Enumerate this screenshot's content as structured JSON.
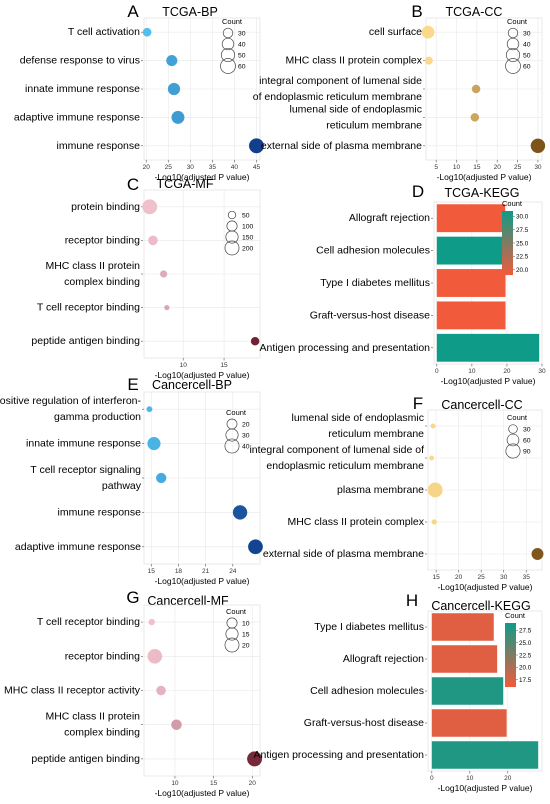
{
  "panels": [
    {
      "letter": "A",
      "title": "TCGA-BP",
      "type": "dot",
      "xlabel": "-Log10(adjusted P value)",
      "xlim": [
        19.5,
        45.8
      ],
      "xticks": [
        20,
        25,
        30,
        35,
        40,
        45
      ],
      "legend_title": "Count",
      "size_legend": [
        30,
        40,
        50,
        60
      ],
      "size_range": [
        30,
        60
      ],
      "color_values": [
        20,
        45
      ],
      "categories": [
        "T cell activation",
        "defense response to virus",
        "innate immune response",
        "adaptive immune response",
        "immune response"
      ],
      "points": [
        {
          "x": 20.2,
          "count": 25
        },
        {
          "x": 25.8,
          "count": 36
        },
        {
          "x": 26.3,
          "count": 42
        },
        {
          "x": 27.2,
          "count": 46
        },
        {
          "x": 45.0,
          "count": 58
        }
      ]
    },
    {
      "letter": "B",
      "title": "TCGA-CC",
      "type": "dot",
      "xlabel": "-Log10(adjusted P value)",
      "xlim": [
        2.5,
        31
      ],
      "xticks": [
        5,
        10,
        15,
        20,
        25,
        30
      ],
      "legend_title": "Count",
      "size_legend": [
        30,
        40,
        50,
        60
      ],
      "size_range": [
        30,
        60
      ],
      "color_values": [
        5,
        30
      ],
      "categories": [
        "cell surface",
        "MHC class II protein complex",
        "integral component of lumenal side of endoplasmic reticulum membrane",
        "lumenal side of endoplasmic reticulum membrane",
        "external side of plasma membrane"
      ],
      "category_lines": [
        [
          "cell surface"
        ],
        [
          "MHC class II protein complex"
        ],
        [
          "integral component of lumenal side",
          "of endoplasmic reticulum membrane"
        ],
        [
          "lumenal side of endoplasmic",
          "reticulum membrane"
        ],
        [
          "external side of plasma membrane"
        ]
      ],
      "points": [
        {
          "x": 3.0,
          "count": 45
        },
        {
          "x": 3.2,
          "count": 22
        },
        {
          "x": 14.8,
          "count": 24
        },
        {
          "x": 14.5,
          "count": 24
        },
        {
          "x": 30.0,
          "count": 55
        }
      ]
    },
    {
      "letter": "C",
      "title": "TCGA-MF",
      "type": "dot",
      "xlabel": "-Log10(adjusted P value)",
      "xlim": [
        5.2,
        19.4
      ],
      "xticks": [
        10,
        15
      ],
      "legend_title": "",
      "size_legend": [
        50,
        100,
        150,
        200
      ],
      "size_range": [
        10,
        230
      ],
      "color_values": [
        5,
        19
      ],
      "categories": [
        "protein binding",
        "receptor binding",
        "MHC class II protein complex binding",
        "T cell receptor binding",
        "peptide antigen binding"
      ],
      "category_lines": [
        [
          "protein binding"
        ],
        [
          "receptor binding"
        ],
        [
          "MHC class II protein",
          "complex binding"
        ],
        [
          "T cell receptor binding"
        ],
        [
          "peptide antigen binding"
        ]
      ],
      "points": [
        {
          "x": 5.9,
          "count": 220
        },
        {
          "x": 6.3,
          "count": 80
        },
        {
          "x": 7.6,
          "count": 40
        },
        {
          "x": 8.0,
          "count": 18
        },
        {
          "x": 18.8,
          "count": 60
        }
      ]
    },
    {
      "letter": "D",
      "title": "TCGA-KEGG",
      "type": "bar",
      "xlabel": "-Log10(adjusted P value)",
      "xlim": [
        -0.8,
        30
      ],
      "xticks": [
        0,
        10,
        20,
        30
      ],
      "legend_title": "Count",
      "color_ticks": [
        20.0,
        22.5,
        25.0,
        27.5,
        30.0
      ],
      "color_range": [
        19,
        31
      ],
      "categories": [
        "Allograft rejection",
        "Cell adhesion molecules",
        "Type I diabetes mellitus",
        "Graft-versus-host disease",
        "Antigen processing and presentation"
      ],
      "bars": [
        {
          "value": 19.5,
          "count": 19
        },
        {
          "value": 19.5,
          "count": 31
        },
        {
          "value": 19.6,
          "count": 19
        },
        {
          "value": 19.6,
          "count": 19
        },
        {
          "value": 29.2,
          "count": 31
        }
      ]
    },
    {
      "letter": "E",
      "title": "Cancercell-BP",
      "type": "dot",
      "xlabel": "-Log10(adjusted P value)",
      "xlim": [
        14.2,
        27
      ],
      "xticks": [
        15,
        18,
        21,
        24
      ],
      "legend_title": "Count",
      "size_legend": [
        20,
        30,
        40
      ],
      "size_range": [
        5,
        45
      ],
      "color_values": [
        14,
        27
      ],
      "categories": [
        "positive regulation of interferon-gamma production",
        "innate immune response",
        "T cell receptor signaling pathway",
        "immune response",
        "adaptive immune response"
      ],
      "category_lines": [
        [
          "positive regulation of interferon-",
          "gamma production"
        ],
        [
          "innate immune response"
        ],
        [
          "T cell receptor signaling",
          "pathway"
        ],
        [
          "immune response"
        ],
        [
          "adaptive immune response"
        ]
      ],
      "points": [
        {
          "x": 14.8,
          "count": 6
        },
        {
          "x": 15.3,
          "count": 33
        },
        {
          "x": 16.1,
          "count": 20
        },
        {
          "x": 24.8,
          "count": 40
        },
        {
          "x": 26.5,
          "count": 42
        }
      ]
    },
    {
      "letter": "F",
      "title": "Cancercell-CC",
      "type": "dot",
      "xlabel": "-Log10(adjusted P value)",
      "xlim": [
        13.2,
        38.5
      ],
      "xticks": [
        15,
        20,
        25,
        30,
        35
      ],
      "legend_title": "Count",
      "size_legend": [
        30,
        60,
        90
      ],
      "size_range": [
        5,
        100
      ],
      "color_values": [
        14,
        38
      ],
      "categories": [
        "lumenal side of endoplasmic reticulum membrane",
        "integral component of lumenal side of endoplasmic reticulum membrane",
        "plasma membrane",
        "MHC class II protein complex",
        "external side of plasma membrane"
      ],
      "category_lines": [
        [
          "lumenal side of endoplasmic",
          "reticulum membrane"
        ],
        [
          "integral component of lumenal side of",
          "endoplasmic reticulum membrane"
        ],
        [
          "plasma membrane"
        ],
        [
          "MHC class II protein complex"
        ],
        [
          "external side of plasma membrane"
        ]
      ],
      "points": [
        {
          "x": 14.3,
          "count": 7
        },
        {
          "x": 14.0,
          "count": 7
        },
        {
          "x": 14.8,
          "count": 95
        },
        {
          "x": 14.6,
          "count": 8
        },
        {
          "x": 37.5,
          "count": 58
        }
      ]
    },
    {
      "letter": "G",
      "title": "Cancercell-MF",
      "type": "dot",
      "xlabel": "-Log10(adjusted P value)",
      "xlim": [
        6.0,
        21
      ],
      "xticks": [
        10,
        15,
        20
      ],
      "legend_title": "Count",
      "size_legend": [
        10,
        15,
        20
      ],
      "size_range": [
        1,
        23
      ],
      "color_values": [
        6,
        21
      ],
      "categories": [
        "T cell receptor binding",
        "receptor binding",
        "MHC class II receptor activity",
        "MHC class II protein complex binding",
        "peptide antigen binding"
      ],
      "category_lines": [
        [
          "T cell receptor binding"
        ],
        [
          "receptor binding"
        ],
        [
          "MHC class II receptor activity"
        ],
        [
          "MHC class II protein",
          "complex binding"
        ],
        [
          "peptide antigen binding"
        ]
      ],
      "points": [
        {
          "x": 7.0,
          "count": 3
        },
        {
          "x": 7.4,
          "count": 21
        },
        {
          "x": 8.2,
          "count": 8
        },
        {
          "x": 10.2,
          "count": 10
        },
        {
          "x": 20.3,
          "count": 22
        }
      ]
    },
    {
      "letter": "H",
      "title": "Cancercell-KEGG",
      "type": "bar",
      "xlabel": "-Log10(adjusted P value)",
      "xlim": [
        -1,
        29
      ],
      "xticks": [
        0,
        10,
        20
      ],
      "legend_title": "Count",
      "color_ticks": [
        17.5,
        20.0,
        22.5,
        25.0,
        27.5
      ],
      "color_range": [
        16,
        29
      ],
      "categories": [
        "Type I diabetes mellitus",
        "Allograft rejection",
        "Cell adhesion molecules",
        "Graft-versus-host disease",
        "Antigen processing and presentation"
      ],
      "bars": [
        {
          "value": 16.3,
          "count": 17
        },
        {
          "value": 17.2,
          "count": 17
        },
        {
          "value": 18.8,
          "count": 28
        },
        {
          "value": 19.7,
          "count": 17
        },
        {
          "value": 28.0,
          "count": 28
        }
      ]
    }
  ],
  "colors": {
    "bp_low": "#4fc0ee",
    "bp_high": "#123f8c",
    "cc_low": "#fad98a",
    "cc_high": "#7d531a",
    "mf_low": "#f9cbd7",
    "mf_high": "#6e2030",
    "bar_low": "#f25a3c",
    "bar_high": "#0e9c88",
    "grid": "#e8e8e8"
  }
}
